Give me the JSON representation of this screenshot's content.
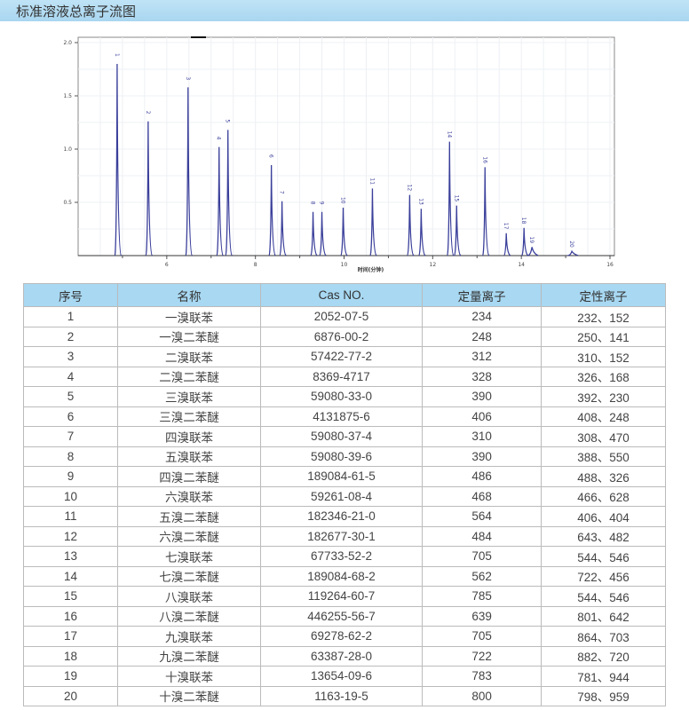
{
  "title": "标准溶液总离子流图",
  "chart_data": {
    "type": "line",
    "title": "",
    "xlabel": "时间(分钟)",
    "ylabel": "",
    "xlim": [
      4,
      16.1
    ],
    "ylim": [
      0,
      2.05
    ],
    "xticks": [
      "6",
      "8",
      "10",
      "12",
      "14",
      "16"
    ],
    "yticks": [
      "0.5",
      "1.0",
      "1.5",
      "2.0"
    ],
    "grid": true,
    "line_color": "#3a3f9a",
    "peaks": [
      {
        "label": "1",
        "x": 4.88,
        "y": 1.8
      },
      {
        "label": "2",
        "x": 5.58,
        "y": 1.26
      },
      {
        "label": "3",
        "x": 6.48,
        "y": 1.58
      },
      {
        "label": "4",
        "x": 7.18,
        "y": 1.02
      },
      {
        "label": "5",
        "x": 7.38,
        "y": 1.18
      },
      {
        "label": "6",
        "x": 8.36,
        "y": 0.85
      },
      {
        "label": "7",
        "x": 8.6,
        "y": 0.51
      },
      {
        "label": "8",
        "x": 9.3,
        "y": 0.41
      },
      {
        "label": "9",
        "x": 9.5,
        "y": 0.41
      },
      {
        "label": "10",
        "x": 9.98,
        "y": 0.45
      },
      {
        "label": "11",
        "x": 10.64,
        "y": 0.63
      },
      {
        "label": "12",
        "x": 11.48,
        "y": 0.57
      },
      {
        "label": "13",
        "x": 11.74,
        "y": 0.44
      },
      {
        "label": "14",
        "x": 12.38,
        "y": 1.07
      },
      {
        "label": "15",
        "x": 12.54,
        "y": 0.47
      },
      {
        "label": "16",
        "x": 13.18,
        "y": 0.83
      },
      {
        "label": "17",
        "x": 13.66,
        "y": 0.21
      },
      {
        "label": "18",
        "x": 14.06,
        "y": 0.26
      },
      {
        "label": "19",
        "x": 14.24,
        "y": 0.08
      },
      {
        "label": "20",
        "x": 15.14,
        "y": 0.04
      }
    ]
  },
  "table": {
    "headers": [
      "序号",
      "名称",
      "Cas NO.",
      "定量离子",
      "定性离子"
    ],
    "rows": [
      [
        "1",
        "一溴联苯",
        "2052-07-5",
        "234",
        "232、152"
      ],
      [
        "2",
        "一溴二苯醚",
        "6876-00-2",
        "248",
        "250、141"
      ],
      [
        "3",
        "二溴联苯",
        "57422-77-2",
        "312",
        "310、152"
      ],
      [
        "4",
        "二溴二苯醚",
        "8369-4717",
        "328",
        "326、168"
      ],
      [
        "5",
        "三溴联苯",
        "59080-33-0",
        "390",
        "392、230"
      ],
      [
        "6",
        "三溴二苯醚",
        "4131875-6",
        "406",
        "408、248"
      ],
      [
        "7",
        "四溴联苯",
        "59080-37-4",
        "310",
        "308、470"
      ],
      [
        "8",
        "五溴联苯",
        "59080-39-6",
        "390",
        "388、550"
      ],
      [
        "9",
        "四溴二苯醚",
        "189084-61-5",
        "486",
        "488、326"
      ],
      [
        "10",
        "六溴联苯",
        "59261-08-4",
        "468",
        "466、628"
      ],
      [
        "11",
        "五溴二苯醚",
        "182346-21-0",
        "564",
        "406、404"
      ],
      [
        "12",
        "六溴二苯醚",
        "182677-30-1",
        "484",
        "643、482"
      ],
      [
        "13",
        "七溴联苯",
        "67733-52-2",
        "705",
        "544、546"
      ],
      [
        "14",
        "七溴二苯醚",
        "189084-68-2",
        "562",
        "722、456"
      ],
      [
        "15",
        "八溴联苯",
        "119264-60-7",
        "785",
        "544、546"
      ],
      [
        "16",
        "八溴二苯醚",
        "446255-56-7",
        "639",
        "801、642"
      ],
      [
        "17",
        "九溴联苯",
        "69278-62-2",
        "705",
        "864、703"
      ],
      [
        "18",
        "九溴二苯醚",
        "63387-28-0",
        "722",
        "882、720"
      ],
      [
        "19",
        "十溴联苯",
        "13654-09-6",
        "783",
        "781、944"
      ],
      [
        "20",
        "十溴二苯醚",
        "1163-19-5",
        "800",
        "798、959"
      ]
    ]
  }
}
